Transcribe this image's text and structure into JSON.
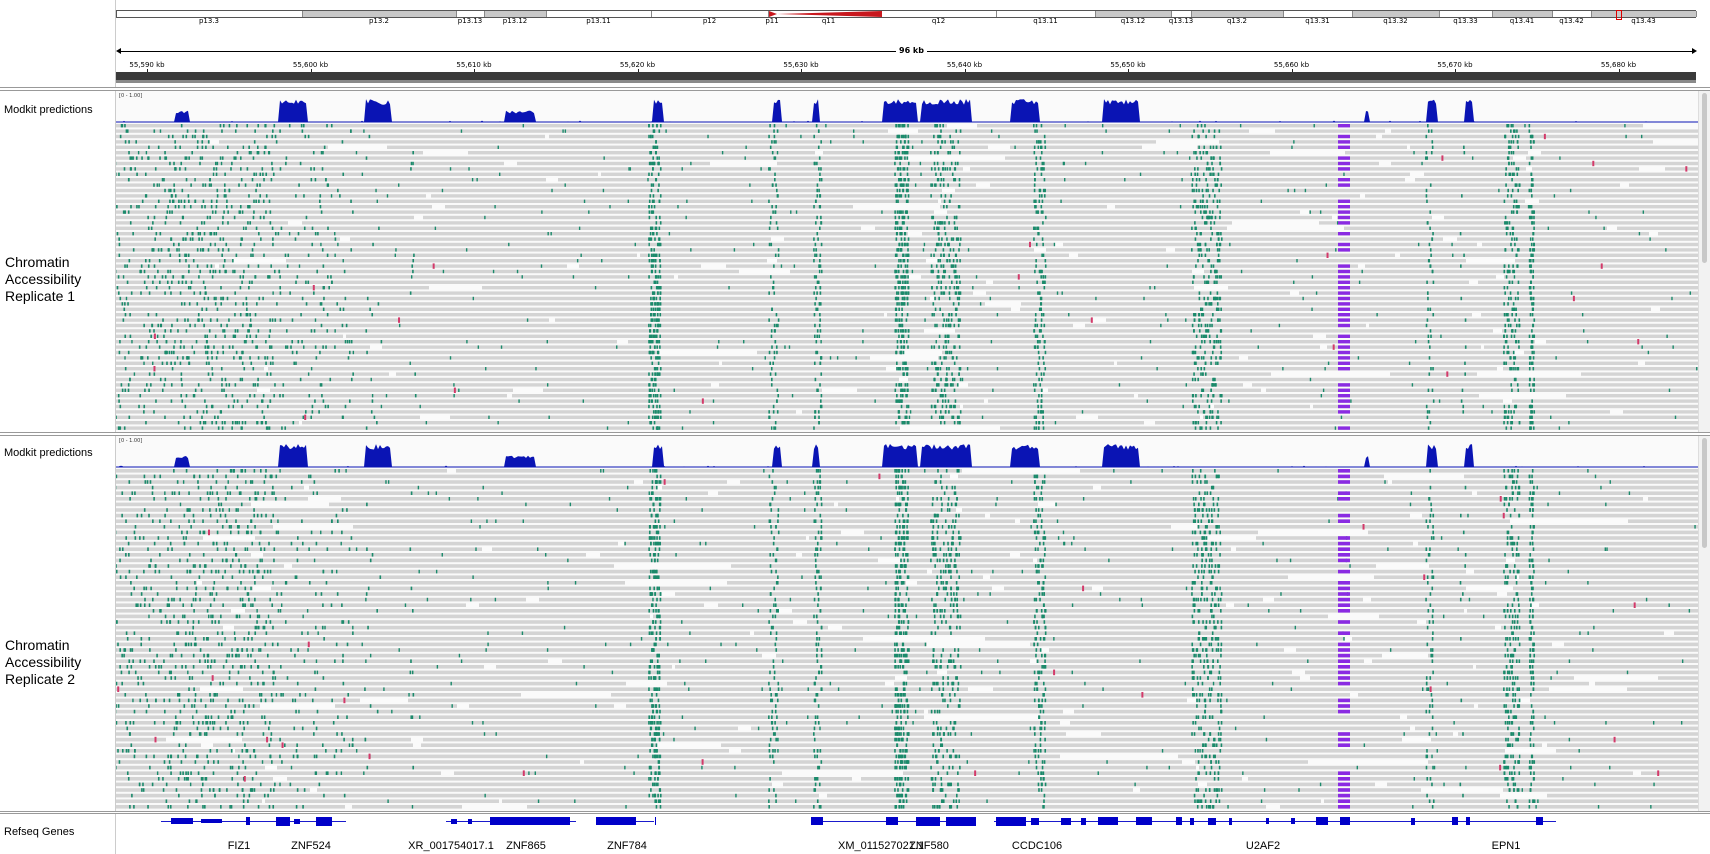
{
  "colors": {
    "coverage": "#0a14b4",
    "read": "#d4d4d4",
    "mod_green": "#1b8a6b",
    "mod_purple": "#8a2be2",
    "insertion_pink": "#d33a6a",
    "gene": "#0000c8"
  },
  "ideogram": {
    "bands": [
      "p13.3",
      "p13.2",
      "p13.13",
      "p13.12",
      "p13.11",
      "p12",
      "p11",
      "q11",
      "q12",
      "q13.11",
      "q13.12",
      "q13.13",
      "q13.2",
      "q13.31",
      "q13.32",
      "q13.33",
      "q13.41",
      "q13.42",
      "q13.43"
    ]
  },
  "ruler": {
    "span_label": "96 kb",
    "tick_labels": [
      "55,590 kb",
      "55,600 kb",
      "55,610 kb",
      "55,620 kb",
      "55,630 kb",
      "55,640 kb",
      "55,650 kb",
      "55,660 kb",
      "55,670 kb",
      "55,680 kb"
    ]
  },
  "tracks": {
    "rep1": {
      "coverage_label": "Modkit predictions",
      "range": "[0 - 1.00]",
      "name": "Chromatin Accessibility Replicate 1"
    },
    "rep2": {
      "coverage_label": "Modkit predictions",
      "range": "[0 - 1.00]",
      "name": "Chromatin Accessibility Replicate 2"
    }
  },
  "genes": {
    "label": "Refseq Genes",
    "names": [
      "FIZ1",
      "ZNF524",
      "XR_001754017.1",
      "ZNF865",
      "ZNF784",
      "XM_011527021.1",
      "ZNF580",
      "CCDC106",
      "U2AF2",
      "EPN1"
    ]
  }
}
